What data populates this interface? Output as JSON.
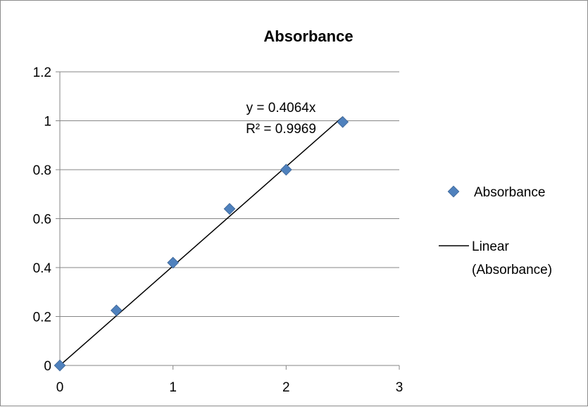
{
  "chart_data": {
    "type": "scatter",
    "title": "Absorbance",
    "xlabel": "",
    "ylabel": "",
    "xlim": [
      0,
      3
    ],
    "ylim": [
      0,
      1.2
    ],
    "x_ticks": [
      "0",
      "1",
      "2",
      "3"
    ],
    "y_ticks": [
      "0",
      "0.2",
      "0.4",
      "0.6",
      "0.8",
      "1",
      "1.2"
    ],
    "grid": "horizontal",
    "legend_position": "right",
    "series": [
      {
        "name": "Absorbance",
        "marker": "diamond",
        "color": "#4f81bd",
        "x": [
          0,
          0.5,
          1,
          1.5,
          2,
          2.5
        ],
        "y": [
          0,
          0.225,
          0.42,
          0.64,
          0.8,
          0.995
        ]
      }
    ],
    "trendline": {
      "name": "Linear (Absorbance)",
      "name_lines": [
        "Linear",
        "(Absorbance)"
      ],
      "slope": 0.4064,
      "x_range": [
        0,
        2.5
      ],
      "color": "#000000",
      "equation": "y = 0.4064x",
      "r_squared": "R² = 0.9969"
    }
  }
}
